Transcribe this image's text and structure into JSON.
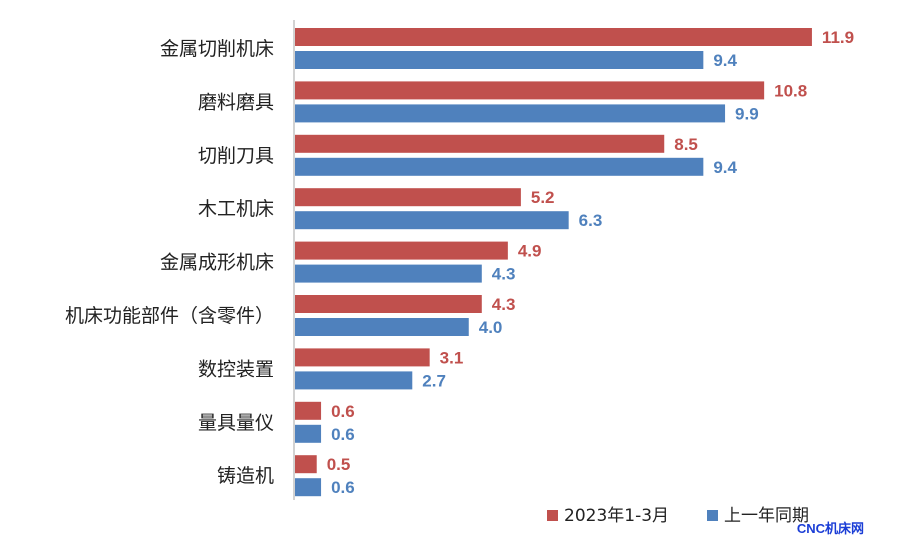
{
  "chart_data": {
    "type": "bar",
    "orientation": "horizontal",
    "categories": [
      "金属切削机床",
      "磨料磨具",
      "切削刀具",
      "木工机床",
      "金属成形机床",
      "机床功能部件（含零件）",
      "数控装置",
      "量具量仪",
      "铸造机"
    ],
    "series": [
      {
        "name": "2023年1-3月",
        "color": "#c0504d",
        "values": [
          11.9,
          10.8,
          8.5,
          5.2,
          4.9,
          4.3,
          3.1,
          0.6,
          0.5
        ]
      },
      {
        "name": "上一年同期",
        "color": "#4f81bd",
        "values": [
          9.4,
          9.9,
          9.4,
          6.3,
          4.3,
          4.0,
          2.7,
          0.6,
          0.6
        ]
      }
    ],
    "value_labels": [
      [
        "11.9",
        "10.8",
        "8.5",
        "5.2",
        "4.9",
        "4.3",
        "3.1",
        "0.6",
        "0.5"
      ],
      [
        "9.4",
        "9.9",
        "9.4",
        "6.3",
        "4.3",
        "4.0",
        "2.7",
        "0.6",
        "0.6"
      ]
    ],
    "xlim": [
      0,
      12.5
    ],
    "legend_position": "bottom-right",
    "grid": false
  },
  "watermark": "CNC机床网"
}
